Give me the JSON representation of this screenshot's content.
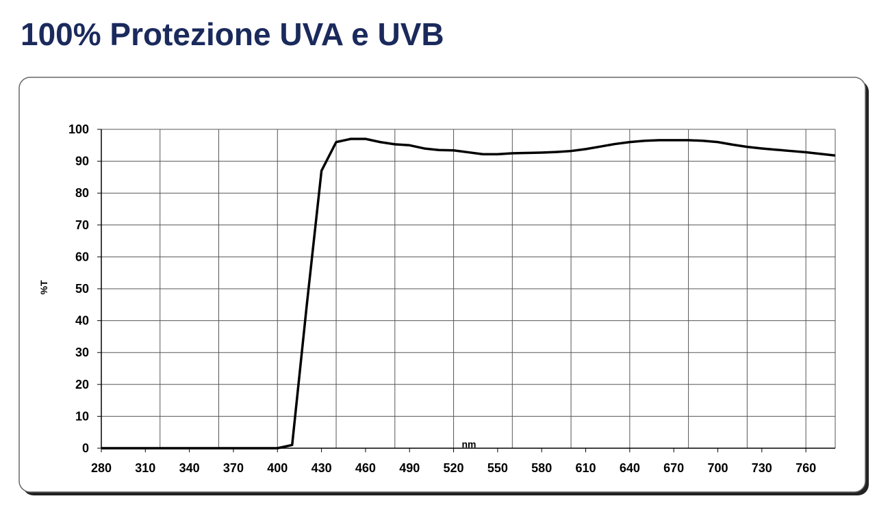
{
  "chart_data": {
    "type": "line",
    "title": "100% Protezione UVA e UVB",
    "x_label": "nm",
    "y_label": "%T",
    "x": [
      280,
      290,
      300,
      310,
      320,
      330,
      340,
      350,
      360,
      370,
      380,
      390,
      400,
      410,
      420,
      430,
      440,
      450,
      460,
      470,
      480,
      490,
      500,
      510,
      520,
      530,
      540,
      550,
      560,
      570,
      580,
      590,
      600,
      610,
      620,
      630,
      640,
      650,
      660,
      670,
      680,
      690,
      700,
      710,
      720,
      730,
      740,
      750,
      760,
      770,
      780
    ],
    "series": [
      {
        "name": "%T",
        "color": "#000000",
        "values": [
          0,
          0,
          0,
          0,
          0,
          0,
          0,
          0,
          0,
          0,
          0,
          0,
          0,
          1,
          45,
          87,
          96,
          97,
          97,
          96,
          95.3,
          95,
          94,
          93.5,
          93.4,
          92.8,
          92.2,
          92.2,
          92.5,
          92.6,
          92.7,
          92.9,
          93.2,
          93.8,
          94.6,
          95.4,
          96,
          96.4,
          96.6,
          96.6,
          96.6,
          96.4,
          96,
          95.2,
          94.5,
          94,
          93.6,
          93.2,
          92.8,
          92.3,
          91.8
        ]
      }
    ],
    "xlim": [
      280,
      780
    ],
    "xticks": [
      280,
      310,
      340,
      370,
      400,
      430,
      460,
      490,
      520,
      550,
      580,
      610,
      640,
      670,
      700,
      730,
      760
    ],
    "x_gridlines": [
      280,
      320,
      360,
      400,
      440,
      480,
      520,
      560,
      600,
      640,
      680,
      720,
      760,
      780
    ],
    "ylim": [
      0,
      100
    ],
    "yticks": [
      0,
      10,
      20,
      30,
      40,
      50,
      60,
      70,
      80,
      90,
      100
    ],
    "grid": true
  }
}
